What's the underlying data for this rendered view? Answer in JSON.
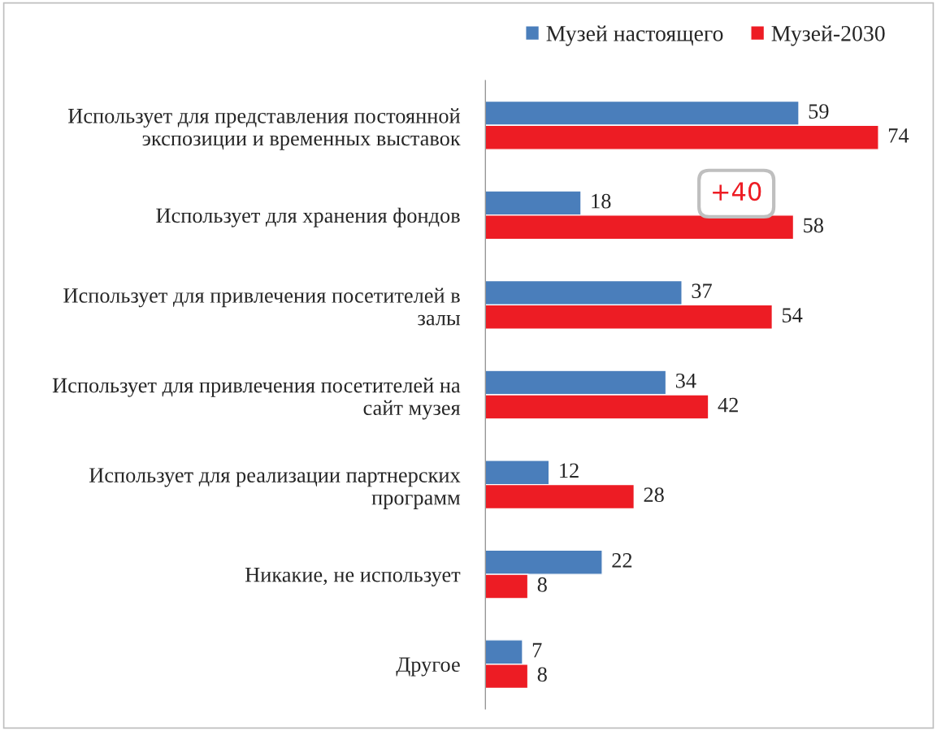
{
  "chart_data": {
    "type": "bar",
    "orientation": "horizontal",
    "categories": [
      "Использует для представления постоянной экспозиции и временных выставок",
      "Использует для хранения фондов",
      "Использует для привлечения посетителей в залы",
      "Использует для привлечения посетителей на сайт музея",
      "Использует для реализации партнерских программ",
      "Никакие, не использует",
      "Другое"
    ],
    "series": [
      {
        "name": "Музей настоящего",
        "color": "#4a7ebb",
        "values": [
          59,
          18,
          37,
          34,
          12,
          22,
          7
        ]
      },
      {
        "name": "Музей-2030",
        "color": "#ed1c24",
        "values": [
          74,
          58,
          54,
          42,
          28,
          8,
          8
        ]
      }
    ],
    "data_labels": true,
    "legend": "top",
    "grid": false,
    "annotations": [
      "+40"
    ]
  }
}
